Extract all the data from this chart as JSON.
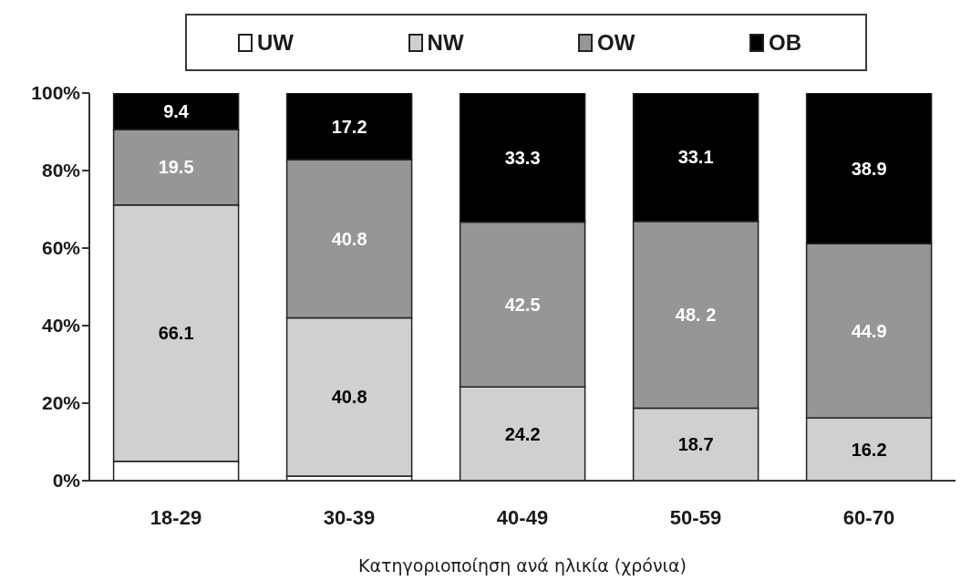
{
  "chart_data": {
    "type": "bar",
    "stacked": true,
    "xlabel": "Κατηγοριοποίηση ανά ηλικία (χρόνια)",
    "categories": [
      "18-29",
      "30-39",
      "40-49",
      "50-59",
      "60-70"
    ],
    "series": [
      {
        "name": "UW",
        "color": "#ffffff",
        "values": [
          5.0,
          1.2,
          0,
          0,
          0
        ]
      },
      {
        "name": "NW",
        "color": "#d0d0d0",
        "values": [
          66.1,
          40.8,
          24.2,
          18.7,
          16.2
        ],
        "value_labels": [
          "66.1",
          "40.8",
          "24.2",
          "18.7",
          "16.2"
        ]
      },
      {
        "name": "OW",
        "color": "#969696",
        "values": [
          19.5,
          40.8,
          42.5,
          48.2,
          44.9
        ],
        "value_labels": [
          "19.5",
          "40.8",
          "42.5",
          "48. 2",
          "44.9"
        ]
      },
      {
        "name": "OB",
        "color": "#000000",
        "values": [
          9.4,
          17.2,
          33.3,
          33.1,
          38.9
        ],
        "value_labels": [
          "9.4",
          "17.2",
          "33.3",
          "33.1",
          "38.9"
        ]
      }
    ],
    "ylim": [
      0,
      100
    ],
    "yticks": [
      {
        "value": 0,
        "label": "0%"
      },
      {
        "value": 20,
        "label": "20%"
      },
      {
        "value": 40,
        "label": "40%"
      },
      {
        "value": 60,
        "label": "60%"
      },
      {
        "value": 80,
        "label": "80%"
      },
      {
        "value": 100,
        "label": "100%"
      }
    ],
    "legend": "top"
  }
}
